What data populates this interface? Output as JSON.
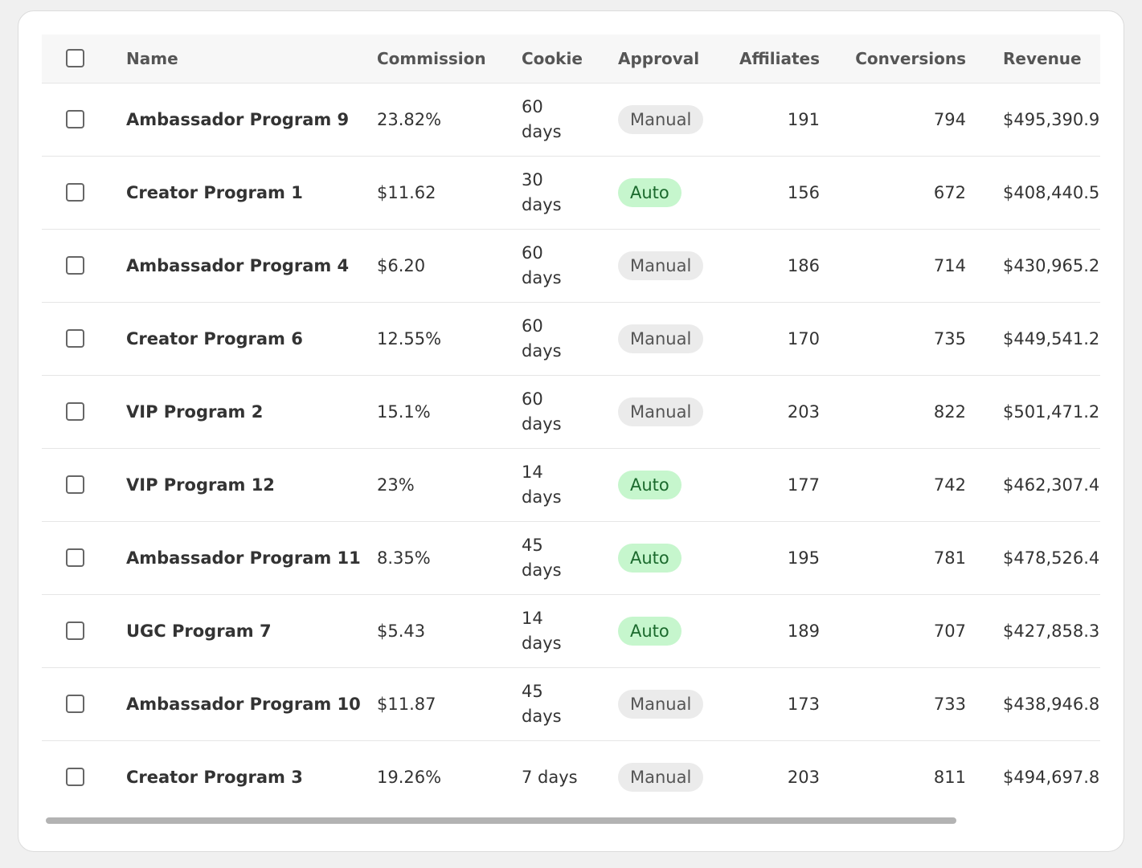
{
  "table": {
    "columns": [
      "Name",
      "Commission",
      "Cookie",
      "Approval",
      "Affiliates",
      "Conversions",
      "Revenue"
    ],
    "rows": [
      [
        "Ambassador Program 9",
        "23.82%",
        "60 days",
        "Manual",
        191,
        794,
        "$495,390.9"
      ],
      [
        "Creator Program 1",
        "$11.62",
        "30 days",
        "Auto",
        156,
        672,
        "$408,440.5"
      ],
      [
        "Ambassador Program 4",
        "$6.20",
        "60 days",
        "Manual",
        186,
        714,
        "$430,965.2"
      ],
      [
        "Creator Program 6",
        "12.55%",
        "60 days",
        "Manual",
        170,
        735,
        "$449,541.2"
      ],
      [
        "VIP Program 2",
        "15.1%",
        "60 days",
        "Manual",
        203,
        822,
        "$501,471.2"
      ],
      [
        "VIP Program 12",
        "23%",
        "14 days",
        "Auto",
        177,
        742,
        "$462,307.4"
      ],
      [
        "Ambassador Program 11",
        "8.35%",
        "45 days",
        "Auto",
        195,
        781,
        "$478,526.4"
      ],
      [
        "UGC Program 7",
        "$5.43",
        "14 days",
        "Auto",
        189,
        707,
        "$427,858.3"
      ],
      [
        "Ambassador Program 10",
        "$11.87",
        "45 days",
        "Manual",
        173,
        733,
        "$438,946.8"
      ],
      [
        "Creator Program 3",
        "19.26%",
        "7 days",
        "Manual",
        203,
        811,
        "$494,697.8"
      ]
    ]
  }
}
